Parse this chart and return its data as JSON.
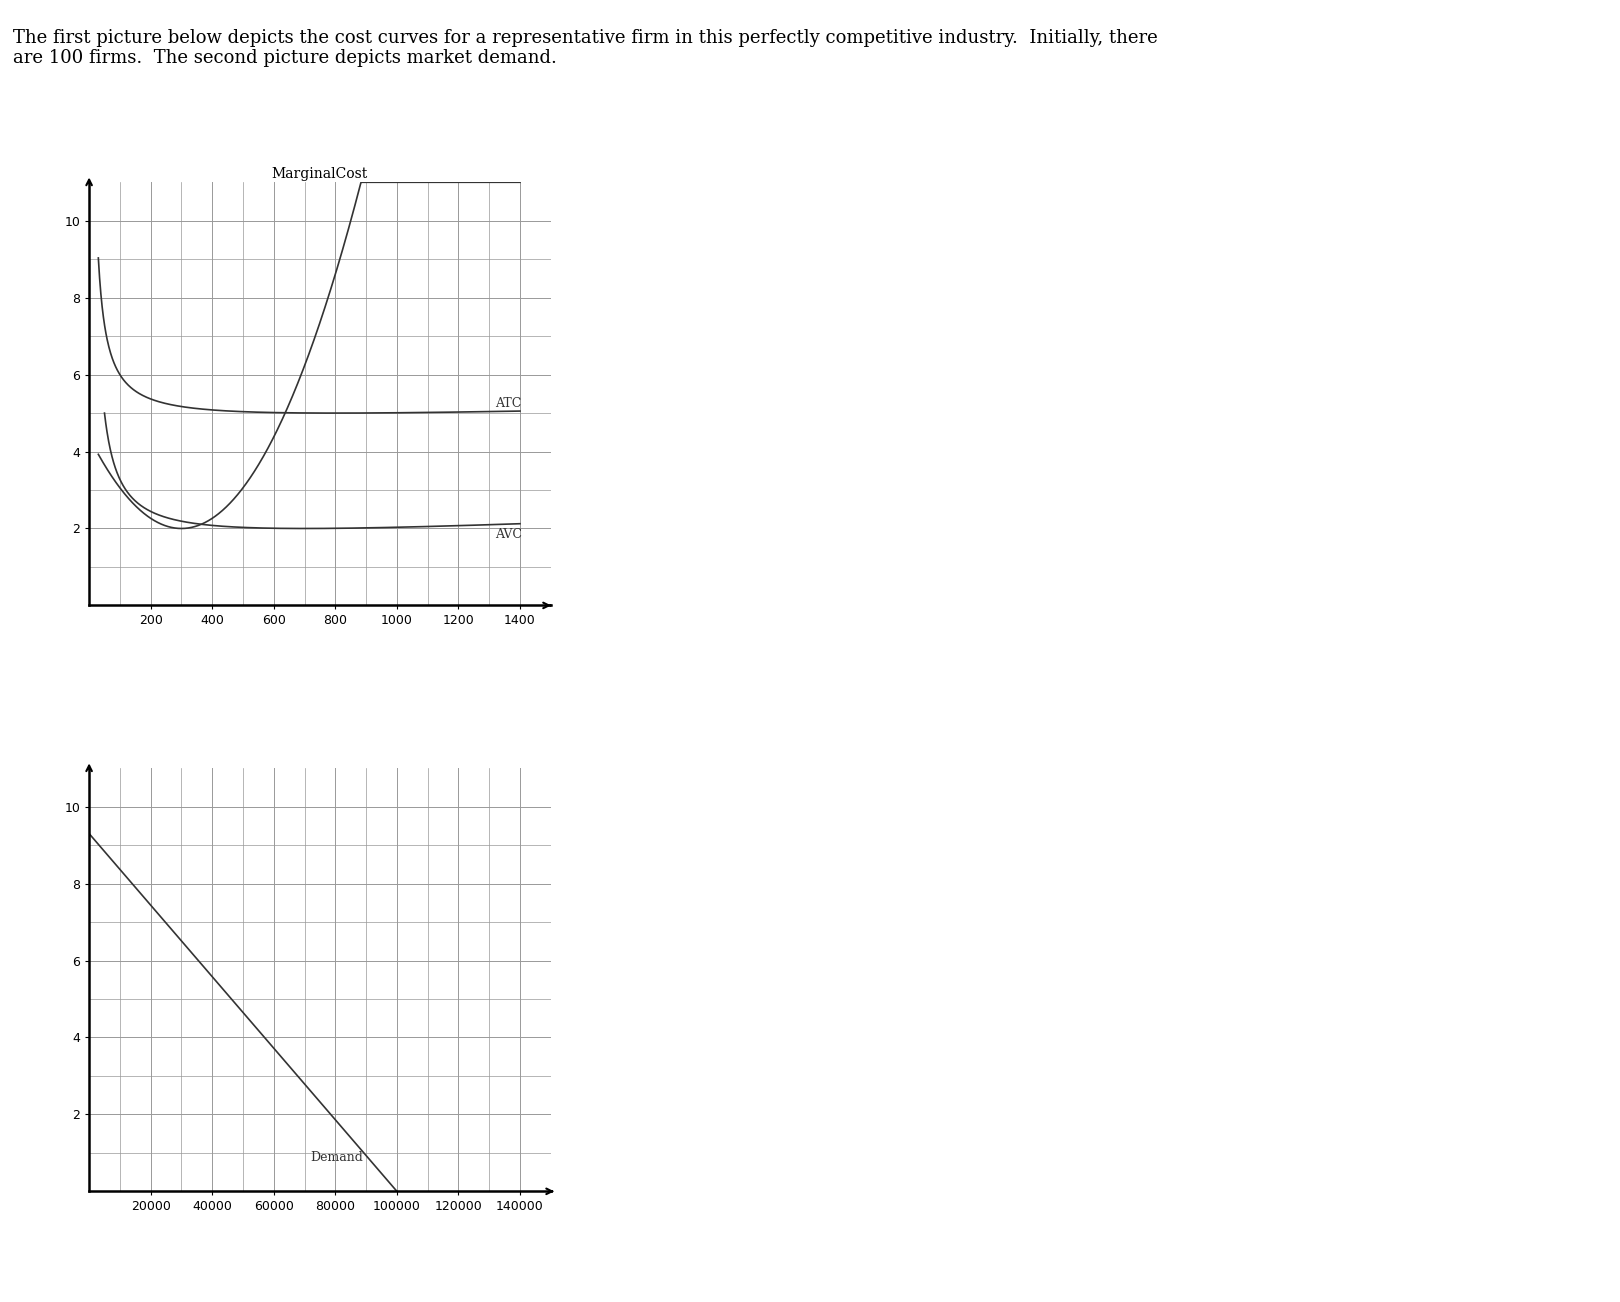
{
  "header_text": "The first picture below depicts the cost curves for a representative firm in this perfectly competitive industry.  Initially, there\nare 100 firms.  The second picture depicts market demand.",
  "header_fontsize": 13,
  "background_color": "#ffffff",
  "firm_chart": {
    "title": "MarginalCost",
    "title_fontsize": 10,
    "xlim": [
      0,
      1500
    ],
    "ylim": [
      0,
      11
    ],
    "xticks": [
      200,
      400,
      600,
      800,
      1000,
      1200,
      1400
    ],
    "yticks": [
      2,
      4,
      6,
      8,
      10
    ],
    "minor_xticks": [
      100,
      200,
      300,
      400,
      500,
      600,
      700,
      800,
      900,
      1000,
      1100,
      1200,
      1300,
      1400
    ],
    "minor_yticks": [
      1,
      2,
      3,
      4,
      5,
      6,
      7,
      8,
      9,
      10
    ],
    "grid_color": "#999999",
    "line_color": "#333333",
    "atc_label": "ATC",
    "avc_label": "AVC",
    "label_fontsize": 9,
    "tick_fontsize": 9
  },
  "market_chart": {
    "xlim": [
      0,
      150000
    ],
    "ylim": [
      0,
      11
    ],
    "xticks": [
      20000,
      40000,
      60000,
      80000,
      100000,
      120000,
      140000
    ],
    "yticks": [
      2,
      4,
      6,
      8,
      10
    ],
    "grid_color": "#999999",
    "line_color": "#333333",
    "demand_label": "Demand",
    "label_fontsize": 9,
    "tick_fontsize": 9,
    "demand_x_start": 0,
    "demand_y_start": 9.3,
    "demand_x_end": 100000,
    "demand_y_end": 0
  }
}
